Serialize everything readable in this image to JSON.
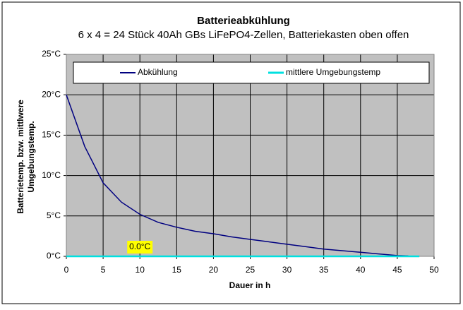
{
  "chart_data": {
    "type": "line",
    "title": "Batterieabkühlung",
    "subtitle": "6 x 4 = 24 Stück 40Ah GBs LiFePO4-Zellen, Batteriekasten oben offen",
    "xlabel": "Dauer in h",
    "ylabel": [
      "Batterietemp. bzw. mittlwere",
      "Umgebungstemp."
    ],
    "xlim": [
      0,
      50
    ],
    "ylim": [
      0,
      25
    ],
    "xticks": [
      0,
      5,
      10,
      15,
      20,
      25,
      30,
      35,
      40,
      45,
      50
    ],
    "yticks": [
      {
        "value": 0,
        "label": "0°C"
      },
      {
        "value": 5,
        "label": "5°C"
      },
      {
        "value": 10,
        "label": "10°C"
      },
      {
        "value": 15,
        "label": "15°C"
      },
      {
        "value": 20,
        "label": "20°C"
      },
      {
        "value": 25,
        "label": "25°C"
      }
    ],
    "grid": true,
    "series": [
      {
        "name": "Abkühlung",
        "color": "#000080",
        "x": [
          0,
          2.5,
          5,
          7.5,
          10,
          12.5,
          15,
          17.5,
          20,
          22.5,
          25,
          27.5,
          30,
          32.5,
          35,
          37.5,
          40,
          42.5,
          45,
          46.5
        ],
        "values": [
          20,
          13.6,
          9.1,
          6.7,
          5.2,
          4.2,
          3.6,
          3.1,
          2.8,
          2.4,
          2.1,
          1.8,
          1.5,
          1.2,
          0.9,
          0.7,
          0.5,
          0.3,
          0.1,
          0.05
        ]
      },
      {
        "name": "mittlere Umgebungstemp",
        "color": "#00e0e0",
        "x": [
          0,
          10,
          48
        ],
        "values": [
          0,
          0,
          0
        ],
        "value_labels": [
          null,
          "0.0°C",
          null
        ]
      }
    ]
  }
}
